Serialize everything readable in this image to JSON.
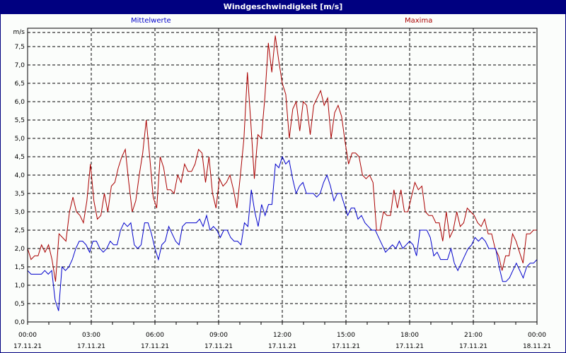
{
  "window": {
    "title": "Windgeschwindigkeit [m/s]"
  },
  "legend": {
    "mean_label": "Mittelwerte",
    "max_label": "Maxima"
  },
  "colors": {
    "titlebar": "#000080",
    "mean": "#0000cc",
    "max": "#aa0000",
    "background": "#fbfdfb"
  },
  "chart_data": {
    "type": "line",
    "title": "Windgeschwindigkeit [m/s]",
    "xlabel": "",
    "ylabel": "m/s",
    "ylim": [
      0,
      8
    ],
    "yticks": [
      "0,0",
      "0,5",
      "1,0",
      "1,5",
      "2,0",
      "2,5",
      "3,0",
      "3,5",
      "4,0",
      "4,5",
      "5,0",
      "5,5",
      "6,0",
      "6,5",
      "7,0",
      "7,5"
    ],
    "xticks": [
      {
        "time": "00:00",
        "date": "17.11.21"
      },
      {
        "time": "03:00",
        "date": "17.11.21"
      },
      {
        "time": "06:00",
        "date": "17.11.21"
      },
      {
        "time": "09:00",
        "date": "17.11.21"
      },
      {
        "time": "12:00",
        "date": "17.11.21"
      },
      {
        "time": "15:00",
        "date": "17.11.21"
      },
      {
        "time": "18:00",
        "date": "17.11.21"
      },
      {
        "time": "21:00",
        "date": "17.11.21"
      },
      {
        "time": "00:00",
        "date": "18.11.21"
      }
    ],
    "grid": true,
    "legend_position": "top",
    "x_interval_minutes": 10,
    "series": [
      {
        "name": "Mittelwerte",
        "color": "#0000cc",
        "values": [
          1.4,
          1.3,
          1.3,
          1.3,
          1.3,
          1.4,
          1.3,
          1.4,
          0.6,
          0.3,
          1.5,
          1.4,
          1.5,
          1.7,
          2.0,
          2.2,
          2.2,
          2.1,
          1.9,
          2.2,
          2.2,
          2.0,
          1.9,
          2.0,
          2.2,
          2.1,
          2.1,
          2.5,
          2.7,
          2.6,
          2.7,
          2.1,
          2.0,
          2.1,
          2.7,
          2.7,
          2.4,
          2.0,
          1.7,
          2.1,
          2.2,
          2.6,
          2.4,
          2.2,
          2.1,
          2.6,
          2.7,
          2.7,
          2.7,
          2.7,
          2.8,
          2.6,
          2.9,
          2.5,
          2.6,
          2.5,
          2.3,
          2.5,
          2.5,
          2.3,
          2.2,
          2.2,
          2.1,
          2.7,
          2.6,
          3.6,
          3.0,
          2.6,
          3.2,
          2.9,
          3.2,
          3.2,
          4.3,
          4.2,
          4.5,
          4.3,
          4.4,
          3.9,
          3.5,
          3.7,
          3.8,
          3.5,
          3.5,
          3.5,
          3.4,
          3.5,
          3.8,
          4.0,
          3.7,
          3.3,
          3.5,
          3.5,
          3.2,
          2.9,
          3.1,
          3.1,
          2.8,
          2.9,
          2.7,
          2.6,
          2.5,
          2.5,
          2.3,
          2.1,
          1.9,
          2.0,
          2.1,
          2.0,
          2.2,
          2.0,
          2.1,
          2.2,
          2.1,
          1.8,
          2.5,
          2.5,
          2.5,
          2.3,
          1.8,
          1.9,
          1.7,
          1.7,
          1.7,
          2.0,
          1.6,
          1.4,
          1.6,
          1.8,
          2.0,
          2.1,
          2.3,
          2.2,
          2.3,
          2.2,
          2.0,
          2.0,
          2.0,
          1.5,
          1.1,
          1.1,
          1.2,
          1.4,
          1.6,
          1.4,
          1.2,
          1.5,
          1.6,
          1.6,
          1.7
        ]
      },
      {
        "name": "Maxima",
        "color": "#aa0000",
        "values": [
          2.0,
          1.7,
          1.8,
          1.8,
          2.1,
          1.9,
          2.1,
          1.7,
          1.1,
          2.4,
          2.3,
          2.2,
          3.0,
          3.4,
          3.0,
          2.9,
          2.7,
          3.3,
          4.3,
          3.3,
          2.8,
          2.9,
          3.5,
          3.0,
          3.7,
          3.8,
          4.2,
          4.5,
          4.7,
          3.8,
          3.0,
          3.3,
          4.0,
          4.6,
          5.5,
          4.5,
          3.4,
          3.1,
          4.5,
          4.2,
          3.6,
          3.6,
          3.5,
          4.0,
          3.8,
          4.3,
          4.1,
          4.1,
          4.3,
          4.7,
          4.6,
          3.8,
          4.5,
          3.5,
          3.1,
          3.9,
          3.7,
          3.8,
          4.0,
          3.6,
          3.1,
          4.0,
          5.0,
          6.8,
          5.4,
          3.9,
          5.1,
          5.0,
          6.1,
          7.6,
          6.8,
          7.8,
          7.1,
          6.5,
          6.2,
          5.0,
          5.8,
          6.0,
          5.2,
          6.0,
          5.9,
          5.1,
          5.9,
          6.1,
          6.3,
          5.9,
          6.1,
          5.0,
          5.7,
          5.9,
          5.6,
          4.9,
          4.3,
          4.6,
          4.6,
          4.5,
          4.0,
          3.9,
          4.0,
          3.8,
          2.5,
          2.5,
          3.0,
          2.9,
          2.9,
          3.6,
          3.1,
          3.6,
          3.0,
          3.0,
          3.4,
          3.8,
          3.6,
          3.7,
          3.0,
          2.9,
          2.9,
          2.7,
          2.7,
          2.2,
          3.0,
          2.3,
          2.5,
          3.0,
          2.6,
          2.7,
          3.1,
          3.0,
          2.9,
          2.7,
          2.6,
          2.8,
          2.4,
          2.4,
          2.0,
          1.8,
          1.4,
          1.8,
          1.8,
          2.4,
          2.2,
          1.9,
          1.6,
          2.4,
          2.4,
          2.5,
          2.5
        ]
      }
    ]
  }
}
